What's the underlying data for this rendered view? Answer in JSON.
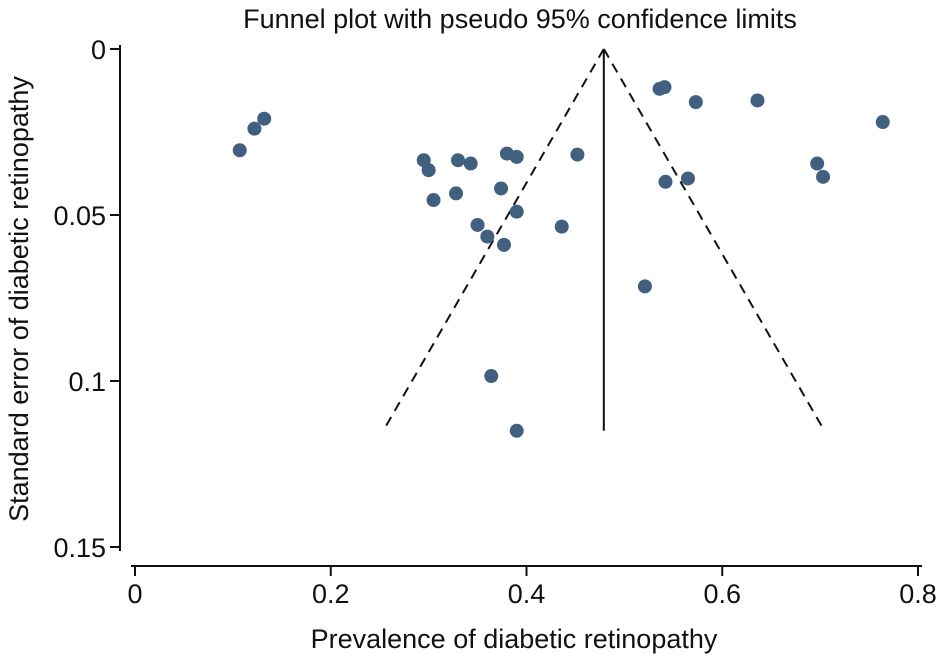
{
  "chart_data": {
    "type": "scatter",
    "title": "Funnel plot with pseudo 95% confidence limits",
    "xlabel": "Prevalence of diabetic retinopathy",
    "ylabel": "Standard error of diabetic retinopathy",
    "xlim": [
      0,
      0.8
    ],
    "ylim": [
      0.15,
      0
    ],
    "y_axis_reversed": true,
    "grid": false,
    "legend": "none",
    "x_ticks": [
      0,
      0.2,
      0.4,
      0.6,
      0.8
    ],
    "x_tick_labels": [
      "0",
      "0.2",
      "0.4",
      "0.6",
      "0.8"
    ],
    "y_ticks": [
      0,
      0.05,
      0.1,
      0.15
    ],
    "y_tick_labels": [
      "0",
      "0.05",
      "0.1",
      "0.15"
    ],
    "pooled_estimate": 0.479,
    "funnel_max_se": 0.115,
    "colors": {
      "points": "#41607f",
      "lines": "#111111",
      "axis": "#111111"
    },
    "series": [
      {
        "values": [
          {
            "x": 0.107,
            "y": 0.0305
          },
          {
            "x": 0.122,
            "y": 0.024
          },
          {
            "x": 0.132,
            "y": 0.021
          },
          {
            "x": 0.295,
            "y": 0.0335
          },
          {
            "x": 0.3,
            "y": 0.0365
          },
          {
            "x": 0.305,
            "y": 0.0455
          },
          {
            "x": 0.328,
            "y": 0.0435
          },
          {
            "x": 0.33,
            "y": 0.0335
          },
          {
            "x": 0.343,
            "y": 0.0345
          },
          {
            "x": 0.35,
            "y": 0.053
          },
          {
            "x": 0.36,
            "y": 0.0565
          },
          {
            "x": 0.364,
            "y": 0.0985
          },
          {
            "x": 0.374,
            "y": 0.042
          },
          {
            "x": 0.377,
            "y": 0.059
          },
          {
            "x": 0.38,
            "y": 0.0315
          },
          {
            "x": 0.39,
            "y": 0.0325
          },
          {
            "x": 0.39,
            "y": 0.049
          },
          {
            "x": 0.39,
            "y": 0.115
          },
          {
            "x": 0.436,
            "y": 0.0535
          },
          {
            "x": 0.452,
            "y": 0.0318
          },
          {
            "x": 0.521,
            "y": 0.0715
          },
          {
            "x": 0.536,
            "y": 0.012
          },
          {
            "x": 0.541,
            "y": 0.0115
          },
          {
            "x": 0.542,
            "y": 0.04
          },
          {
            "x": 0.565,
            "y": 0.039
          },
          {
            "x": 0.573,
            "y": 0.016
          },
          {
            "x": 0.636,
            "y": 0.0155
          },
          {
            "x": 0.697,
            "y": 0.0345
          },
          {
            "x": 0.703,
            "y": 0.0385
          },
          {
            "x": 0.764,
            "y": 0.022
          }
        ]
      }
    ]
  }
}
